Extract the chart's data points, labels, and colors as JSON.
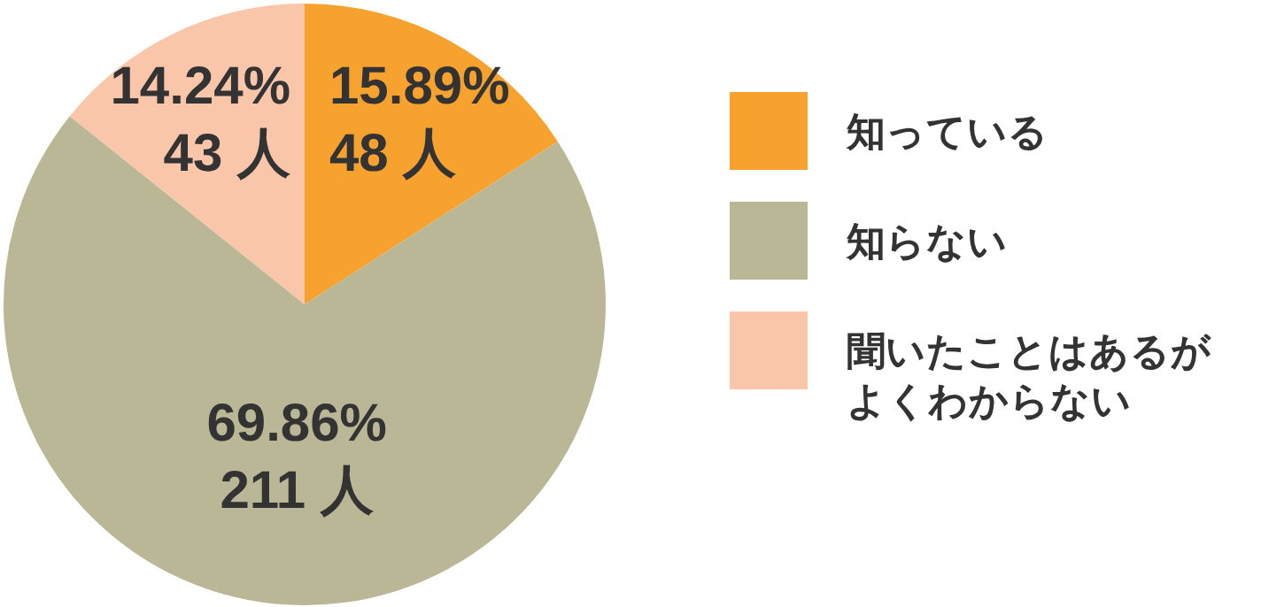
{
  "chart_data": {
    "type": "pie",
    "categories": [
      "知っている",
      "知らない",
      "聞いたことはあるがよくわからない"
    ],
    "values": [
      48,
      211,
      43
    ],
    "colors": [
      "#f7a22e",
      "#b9b795",
      "#f9c6aa"
    ],
    "value_labels": [
      "15.89%\n48 人",
      "69.86%\n211 人",
      "14.24%\n43 人"
    ],
    "legend": "right"
  }
}
